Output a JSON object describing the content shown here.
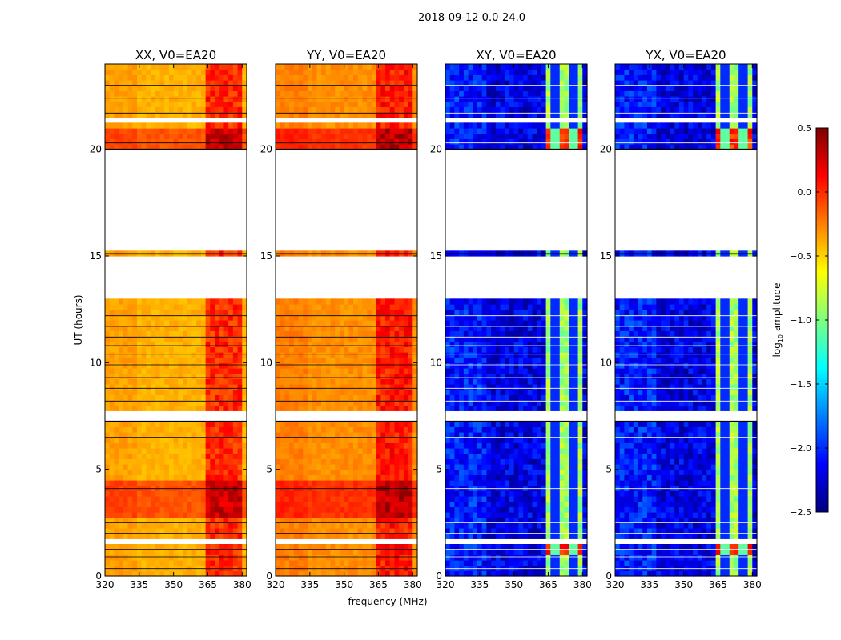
{
  "suptitle": "2018-09-12 0.0-24.0",
  "colors": {
    "jet": [
      "#00007f",
      "#0000ff",
      "#007fff",
      "#00ffff",
      "#7fff7f",
      "#ffff00",
      "#ff7f00",
      "#ff0000",
      "#7f0000"
    ],
    "empty": "#ffffff",
    "rfi_line": "#000000"
  },
  "chart_data": {
    "type": "heatmap",
    "x_label": "frequency (MHz)",
    "y_label": "UT (hours)",
    "xlim": [
      320,
      382
    ],
    "ylim": [
      0,
      24
    ],
    "x_ticks": [
      320,
      335,
      350,
      365,
      380
    ],
    "y_ticks": [
      0,
      5,
      10,
      15,
      20
    ],
    "colorbar": {
      "label": "log",
      "label_sub": "10",
      "label_rest": " amplitude",
      "range": [
        -2.5,
        0.5
      ],
      "ticks": [
        {
          "value": 0.5,
          "label": "0.5"
        },
        {
          "value": 0.0,
          "label": "0.0"
        },
        {
          "value": -0.5,
          "label": "−0.5"
        },
        {
          "value": -1.0,
          "label": "−1.0"
        },
        {
          "value": -1.5,
          "label": "−1.5"
        },
        {
          "value": -2.0,
          "label": "−2.0"
        },
        {
          "value": -2.5,
          "label": "−2.5"
        }
      ]
    },
    "data_gaps_hours": [
      [
        15.3,
        20.0
      ],
      [
        13.1,
        15.1
      ],
      [
        7.3,
        7.7
      ],
      [
        1.5,
        1.75
      ],
      [
        21.3,
        21.45
      ]
    ],
    "masked_band_mhz": [
      [
        363.5,
        380.5
      ]
    ],
    "panels": [
      {
        "title": "XX, V0=EA20",
        "kind": "parallel",
        "base_level": -0.4,
        "band_level": 0.0,
        "peak_hours": [
          [
            2.8,
            4.4
          ],
          [
            20.0,
            21.0
          ]
        ]
      },
      {
        "title": "YY, V0=EA20",
        "kind": "parallel",
        "base_level": -0.3,
        "band_level": 0.05,
        "peak_hours": [
          [
            2.8,
            4.4
          ],
          [
            20.0,
            21.0
          ]
        ]
      },
      {
        "title": "XY, V0=EA20",
        "kind": "cross",
        "base_level": -2.2,
        "band_level": -0.9,
        "peak_hours": [
          [
            1.0,
            1.4
          ],
          [
            20.0,
            21.0
          ]
        ]
      },
      {
        "title": "YX, V0=EA20",
        "kind": "cross",
        "base_level": -2.2,
        "band_level": -0.9,
        "peak_hours": [
          [
            1.0,
            1.4
          ],
          [
            20.0,
            21.0
          ]
        ]
      }
    ]
  }
}
